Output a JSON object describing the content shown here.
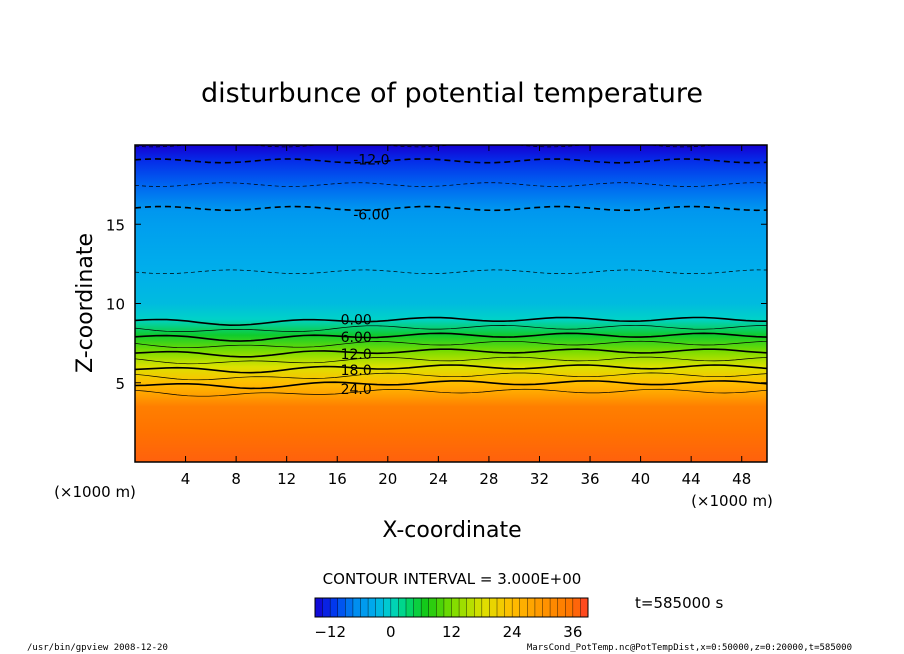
{
  "chart_data": {
    "type": "heatmap",
    "title": "disturbunce of potential temperature",
    "xlabel": "X-coordinate",
    "ylabel": "Z-coordinate",
    "x_unit_left": "(×1000 m)",
    "x_unit_right": "(×1000 m)",
    "xlim": [
      0,
      50
    ],
    "ylim": [
      0,
      20
    ],
    "x_ticks": [
      4,
      8,
      12,
      16,
      20,
      24,
      28,
      32,
      36,
      40,
      44,
      48
    ],
    "y_ticks": [
      5,
      10,
      15
    ],
    "grid": false,
    "z_profile": [
      {
        "z": 0,
        "value": 37
      },
      {
        "z": 2,
        "value": 36
      },
      {
        "z": 3.5,
        "value": 34
      },
      {
        "z": 4.3,
        "value": 28
      },
      {
        "z": 5,
        "value": 24
      },
      {
        "z": 6,
        "value": 18
      },
      {
        "z": 7,
        "value": 12
      },
      {
        "z": 8,
        "value": 6
      },
      {
        "z": 9,
        "value": 0
      },
      {
        "z": 10,
        "value": -2
      },
      {
        "z": 12,
        "value": -3
      },
      {
        "z": 15,
        "value": -5
      },
      {
        "z": 16,
        "value": -6
      },
      {
        "z": 17.5,
        "value": -9
      },
      {
        "z": 19,
        "value": -12
      },
      {
        "z": 20,
        "value": -15
      }
    ],
    "contour_labels": [
      {
        "text": "-12.0",
        "x": 18.7,
        "z": 19.1
      },
      {
        "text": "-6.00",
        "x": 18.7,
        "z": 15.6
      },
      {
        "text": "0.00",
        "x": 17.5,
        "z": 9.0
      },
      {
        "text": "6.00",
        "x": 17.5,
        "z": 7.9
      },
      {
        "text": "12.0",
        "x": 17.5,
        "z": 6.8
      },
      {
        "text": "18.0",
        "x": 17.5,
        "z": 5.8
      },
      {
        "text": "24.0",
        "x": 17.5,
        "z": 4.6
      }
    ],
    "contour_interval_text": "CONTOUR INTERVAL = 3.000E+00",
    "time_text": "t=585000 s",
    "colorbar": {
      "vmin": -15,
      "vmax": 39,
      "ticks": [
        "-12",
        "0",
        "12",
        "24",
        "36"
      ]
    }
  },
  "footer": {
    "left": "/usr/bin/gpview  2008-12-20",
    "right": "MarsCond_PotTemp.nc@PotTempDist,x=0:50000,z=0:20000,t=585000"
  }
}
